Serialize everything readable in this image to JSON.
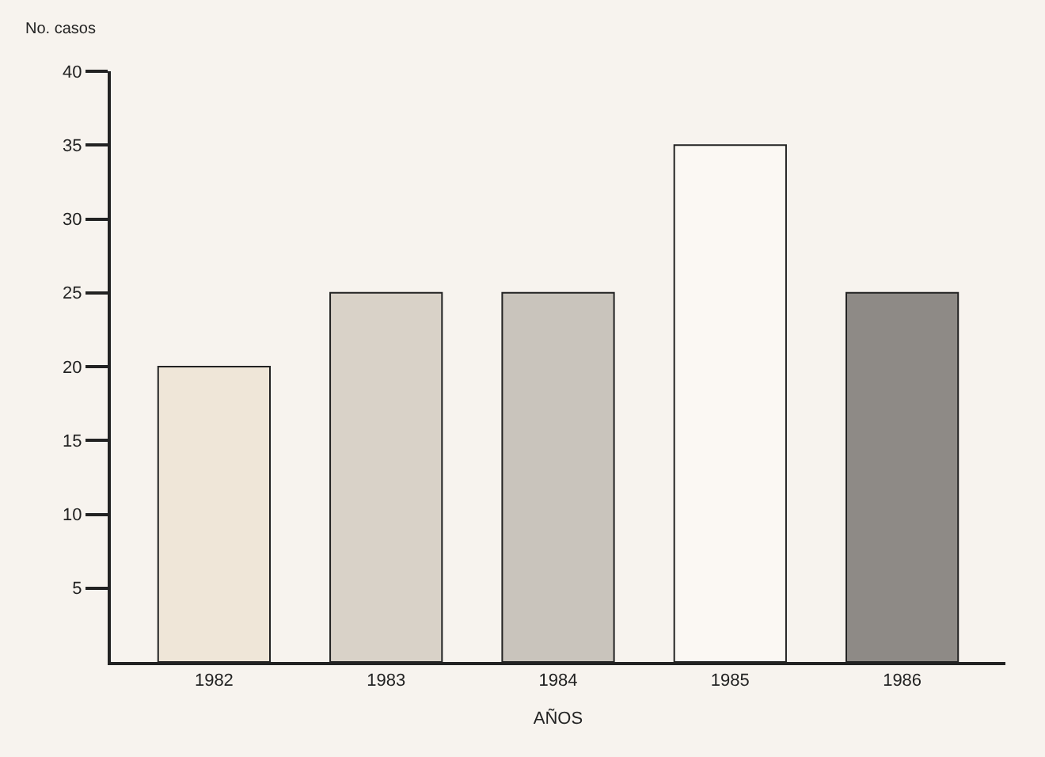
{
  "chart_data": {
    "type": "bar",
    "xlabel": "AÑOS",
    "ylabel": "No. casos",
    "categories": [
      "1982",
      "1983",
      "1984",
      "1985",
      "1986"
    ],
    "values": [
      20,
      25,
      25,
      35,
      25
    ],
    "colors": [
      "#efe6d8",
      "#d9d2c8",
      "#c9c4bc",
      "#fbf8f3",
      "#8e8a86"
    ],
    "ylim": [
      0,
      40
    ],
    "yticks": [
      5,
      10,
      15,
      20,
      25,
      30,
      35,
      40
    ],
    "grid": false
  }
}
